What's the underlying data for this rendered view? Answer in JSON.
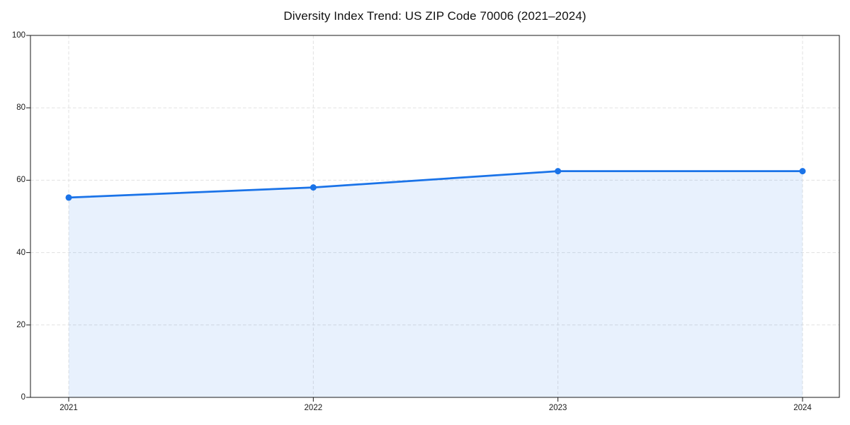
{
  "page": {
    "background_color": "#ffffff"
  },
  "chart_data": {
    "type": "area",
    "title": "Diversity Index Trend: US ZIP Code 70006 (2021–2024)",
    "categories": [
      "2021",
      "2022",
      "2023",
      "2024"
    ],
    "x": [
      2021,
      2022,
      2023,
      2024
    ],
    "values": [
      55.2,
      58.0,
      62.5,
      62.5
    ],
    "xlabel": "",
    "ylabel": "",
    "ylim": [
      0,
      100
    ],
    "yticks": [
      0,
      20,
      40,
      60,
      80,
      100
    ],
    "grid": true,
    "grid_style": "dashed",
    "legend_position": "none",
    "line_color": "#1a73e8",
    "fill_color": "rgba(26,115,232,0.10)",
    "marker": "circle",
    "axis_color": "#1a1a1a",
    "grid_color": "#e1e1e1"
  }
}
